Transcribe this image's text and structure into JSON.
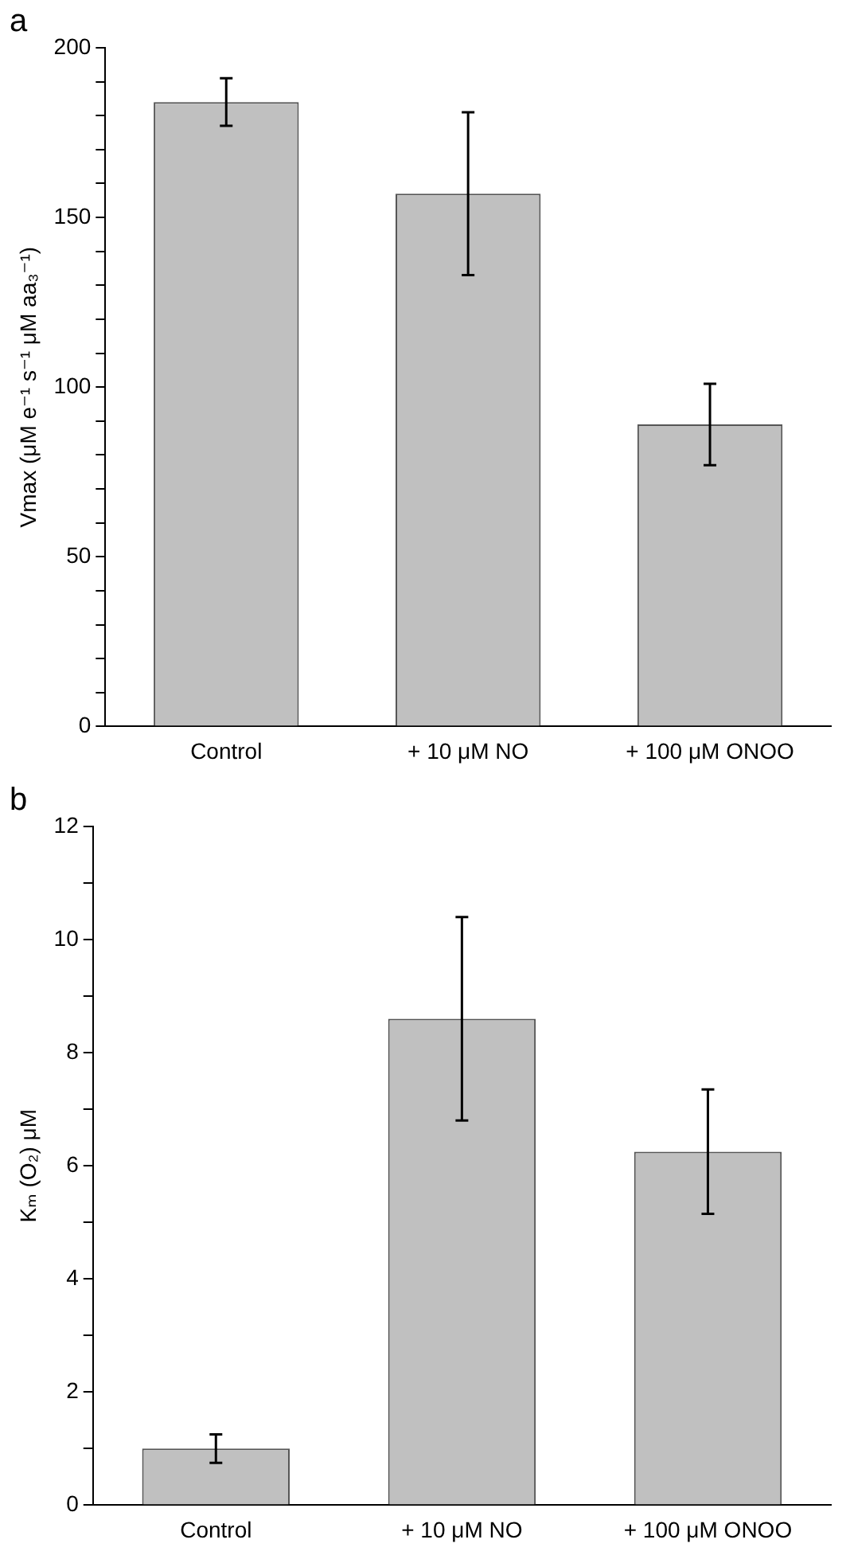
{
  "chart_data": [
    {
      "type": "bar",
      "title": "a",
      "ylabel": "Vmax (μM e⁻¹ s⁻¹ μM aa₃⁻¹)",
      "categories": [
        "Control",
        "+ 10 μM NO",
        "+ 100 μM ONOO"
      ],
      "values": [
        184,
        157,
        89
      ],
      "errors": [
        7,
        24,
        12
      ],
      "color": "#c0c0c0",
      "ylim": [
        0,
        200
      ],
      "yticks": [
        0,
        {
          "value": 10,
          "label": null
        },
        {
          "value": 20,
          "label": null
        },
        {
          "value": 30,
          "label": null
        },
        {
          "value": 40,
          "label": null
        },
        50,
        {
          "value": 60,
          "label": null
        },
        {
          "value": 70,
          "label": null
        },
        {
          "value": 80,
          "label": null
        },
        {
          "value": 90,
          "label": null
        },
        100,
        {
          "value": 110,
          "label": null
        },
        {
          "value": 120,
          "label": null
        },
        {
          "value": 130,
          "label": null
        },
        {
          "value": 140,
          "label": null
        },
        150,
        {
          "value": 160,
          "label": null
        },
        {
          "value": 170,
          "label": null
        },
        {
          "value": 180,
          "label": null
        },
        {
          "value": 190,
          "label": null
        },
        200
      ],
      "grid": false,
      "legend": false
    },
    {
      "type": "bar",
      "title": "b",
      "ylabel": "Kₘ (O₂) μM",
      "categories": [
        "Control",
        "+ 10 μM NO",
        "+ 100 μM ONOO"
      ],
      "values": [
        1.0,
        8.6,
        6.25
      ],
      "errors": [
        0.25,
        1.8,
        1.1
      ],
      "color": "#c0c0c0",
      "ylim": [
        0,
        12
      ],
      "yticks": [
        0,
        {
          "value": 1,
          "label": null
        },
        2,
        {
          "value": 3,
          "label": null
        },
        4,
        {
          "value": 5,
          "label": null
        },
        6,
        {
          "value": 7,
          "label": null
        },
        8,
        {
          "value": 9,
          "label": null
        },
        10,
        {
          "value": 11,
          "label": null
        },
        12
      ],
      "grid": false,
      "legend": false
    }
  ]
}
